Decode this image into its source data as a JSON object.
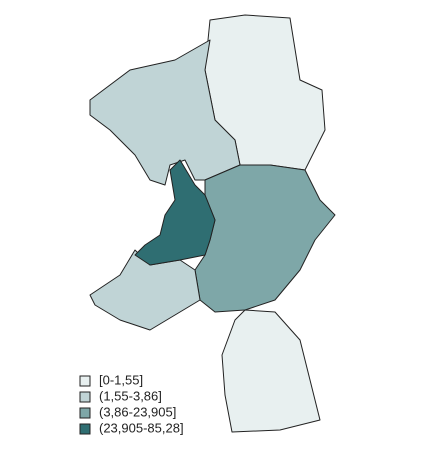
{
  "legend": {
    "items": [
      {
        "label": "[0-1,55]",
        "color": "#e8f0f0"
      },
      {
        "label": "(1,55-3,86]",
        "color": "#c0d4d6"
      },
      {
        "label": "(3,86-23,905]",
        "color": "#7ea7a8"
      },
      {
        "label": "(23,905-85,28]",
        "color": "#2f6e72"
      }
    ]
  }
}
